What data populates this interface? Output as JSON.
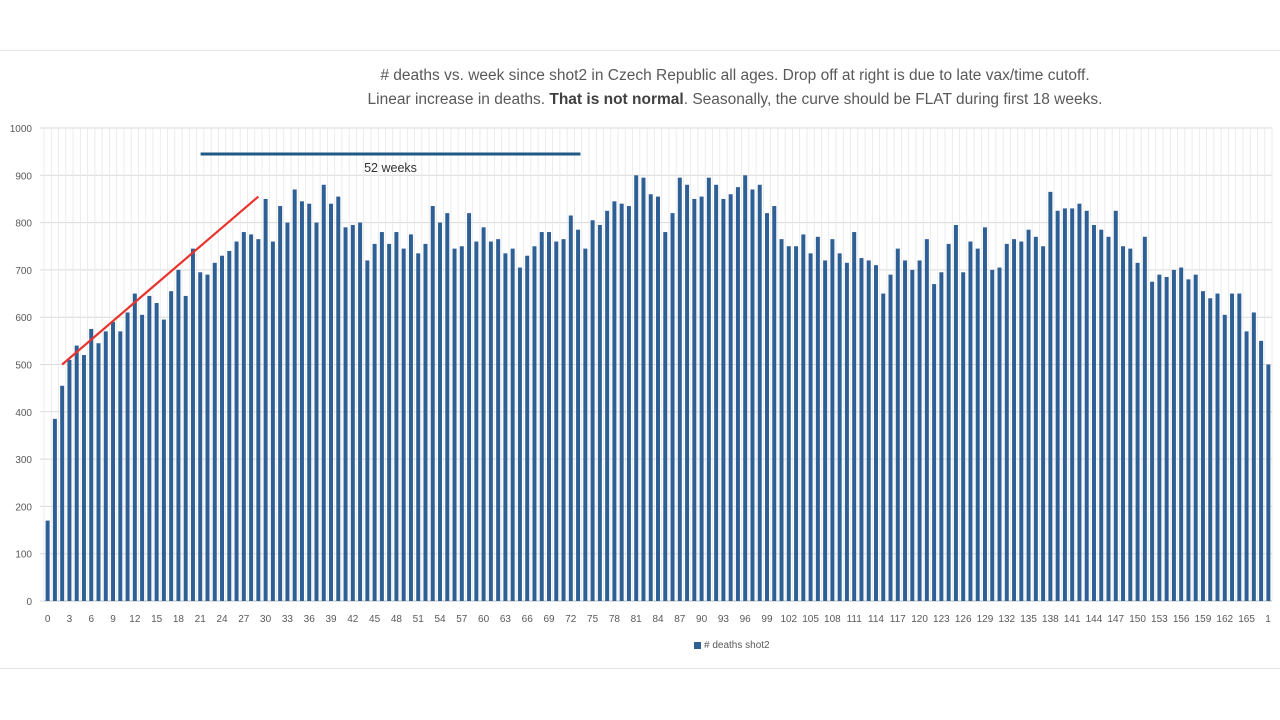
{
  "title_line1": "# deaths vs. week since shot2 in Czech Republic all ages. Drop off at right is due to late vax/time cutoff.",
  "title_line2_pre": "Linear increase in deaths. ",
  "title_line2_bold": "That is not normal",
  "title_line2_post": ". Seasonally, the curve should be FLAT during first 18 weeks.",
  "annotation_label": "52 weeks",
  "colors": {
    "bar": "#2e6096",
    "trend": "#e8342f",
    "span": "#1f5a87",
    "grid": "#d9d9d9"
  },
  "chart_data": {
    "type": "bar",
    "title": "# deaths vs. week since shot2 in Czech Republic all ages",
    "xlabel": "",
    "ylabel": "",
    "ylim": [
      0,
      1000
    ],
    "yticks": [
      0,
      100,
      200,
      300,
      400,
      500,
      600,
      700,
      800,
      900,
      1000
    ],
    "x_tick_labels": [
      "0",
      "3",
      "6",
      "9",
      "12",
      "15",
      "18",
      "21",
      "24",
      "27",
      "30",
      "33",
      "36",
      "39",
      "42",
      "45",
      "48",
      "51",
      "54",
      "57",
      "60",
      "63",
      "66",
      "69",
      "72",
      "75",
      "78",
      "81",
      "84",
      "87",
      "90",
      "93",
      "96",
      "99",
      "102",
      "105",
      "108",
      "111",
      "114",
      "117",
      "120",
      "123",
      "126",
      "129",
      "132",
      "135",
      "138",
      "141",
      "144",
      "147",
      "150",
      "153",
      "156",
      "159",
      "162",
      "165",
      "1"
    ],
    "legend": [
      "# deaths shot2"
    ],
    "series": [
      {
        "name": "# deaths shot2",
        "values": [
          170,
          385,
          455,
          510,
          540,
          520,
          575,
          545,
          570,
          590,
          570,
          610,
          650,
          605,
          645,
          630,
          595,
          655,
          700,
          645,
          745,
          695,
          690,
          715,
          730,
          740,
          760,
          780,
          775,
          765,
          850,
          760,
          835,
          800,
          870,
          845,
          840,
          800,
          880,
          840,
          855,
          790,
          795,
          800,
          720,
          755,
          780,
          755,
          780,
          745,
          775,
          735,
          755,
          835,
          800,
          820,
          745,
          750,
          820,
          760,
          790,
          760,
          765,
          735,
          745,
          705,
          730,
          750,
          780,
          780,
          760,
          765,
          815,
          785,
          745,
          805,
          795,
          825,
          845,
          840,
          835,
          900,
          895,
          860,
          855,
          780,
          820,
          895,
          880,
          850,
          855,
          895,
          880,
          850,
          860,
          875,
          900,
          870,
          880,
          820,
          835,
          765,
          750,
          750,
          775,
          735,
          770,
          720,
          765,
          735,
          715,
          780,
          725,
          720,
          710,
          650,
          690,
          745,
          720,
          700,
          720,
          765,
          670,
          695,
          755,
          795,
          695,
          760,
          745,
          790,
          700,
          705,
          755,
          765,
          760,
          785,
          770,
          750,
          865,
          825,
          830,
          830,
          840,
          825,
          795,
          785,
          770,
          825,
          750,
          745,
          715,
          770,
          675,
          690,
          685,
          700,
          705,
          680,
          690,
          655,
          640,
          650,
          605,
          650,
          650,
          570,
          610,
          550,
          500
        ]
      }
    ],
    "annotations": [
      {
        "type": "trend-line",
        "from": [
          2,
          500
        ],
        "to": [
          29,
          855
        ],
        "color": "red"
      },
      {
        "type": "span",
        "from_week": 21,
        "to_week": 73,
        "y": 945,
        "label": "52 weeks"
      }
    ]
  }
}
